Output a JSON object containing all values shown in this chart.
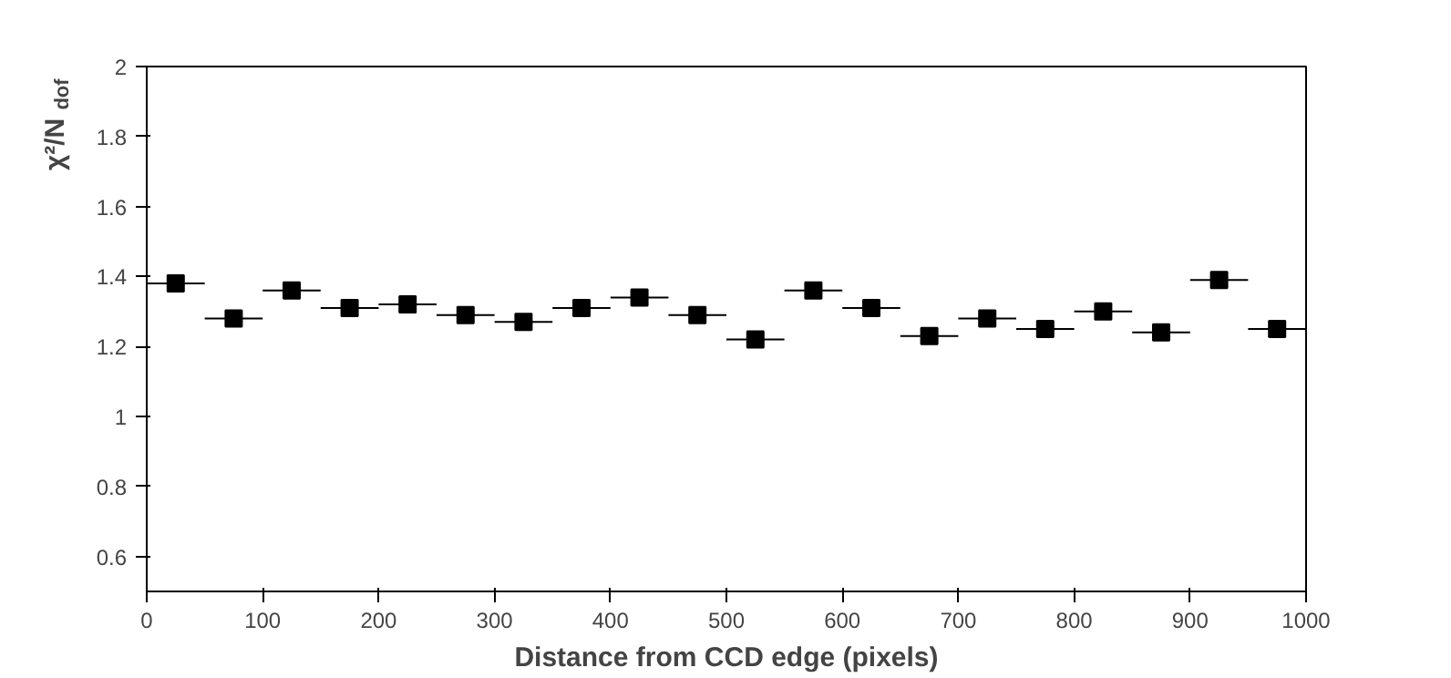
{
  "chart_data": {
    "type": "scatter",
    "xlabel": "Distance from CCD edge (pixels)",
    "ylabel": "χ²/N$_{dof}$",
    "x": [
      25,
      75,
      125,
      175,
      225,
      275,
      325,
      375,
      425,
      475,
      525,
      575,
      625,
      675,
      725,
      775,
      825,
      875,
      925,
      975
    ],
    "values": [
      1.38,
      1.28,
      1.36,
      1.31,
      1.32,
      1.29,
      1.27,
      1.31,
      1.34,
      1.29,
      1.22,
      1.36,
      1.31,
      1.23,
      1.28,
      1.25,
      1.3,
      1.24,
      1.39,
      1.25
    ],
    "xerrors": [
      25,
      25,
      25,
      25,
      25,
      25,
      25,
      25,
      25,
      25,
      25,
      25,
      25,
      25,
      25,
      25,
      25,
      25,
      25,
      25
    ],
    "color": "#000000",
    "marker": "square",
    "grid": false,
    "xlim": [
      0,
      1000
    ],
    "xticks": [
      0,
      100,
      200,
      300,
      400,
      500,
      600,
      700,
      800,
      900,
      1000
    ],
    "ylim": [
      0.5,
      2
    ],
    "yticks": [
      0.6,
      0.8,
      1,
      1.2,
      1.4,
      1.6,
      1.8,
      2
    ]
  }
}
